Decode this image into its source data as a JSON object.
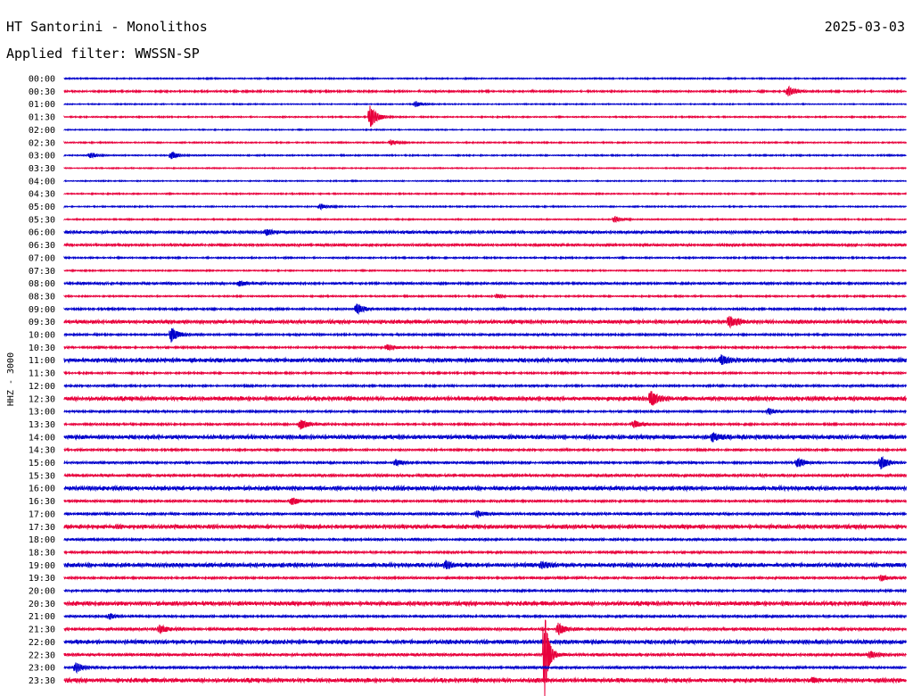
{
  "header": {
    "title": "HT Santorini - Monolithos",
    "date": "2025-03-03",
    "filter": "Applied filter: WWSSN-SP"
  },
  "colors": {
    "blue_trace": "#0000cc",
    "red_trace": "#e8003c"
  },
  "chart_data": {
    "type": "line",
    "title": "HT Santorini - Monolithos",
    "ylabel": "HHZ - 3000",
    "row_labels": [
      "00:00",
      "00:30",
      "01:00",
      "01:30",
      "02:00",
      "02:30",
      "03:00",
      "03:30",
      "04:00",
      "04:30",
      "05:00",
      "05:30",
      "06:00",
      "06:30",
      "07:00",
      "07:30",
      "08:00",
      "08:30",
      "09:00",
      "09:30",
      "10:00",
      "10:30",
      "11:00",
      "11:30",
      "12:00",
      "12:30",
      "13:00",
      "13:30",
      "14:00",
      "14:30",
      "15:00",
      "15:30",
      "16:00",
      "16:30",
      "17:00",
      "17:30",
      "18:00",
      "18:30",
      "19:00",
      "19:30",
      "20:00",
      "20:30",
      "21:00",
      "21:30",
      "22:00",
      "22:30",
      "23:00",
      "23:30"
    ],
    "row_colors": [
      "blue",
      "red"
    ],
    "row_duration_min": 30,
    "noise_level": [
      0.6,
      0.8,
      0.5,
      0.6,
      0.5,
      0.6,
      0.6,
      0.5,
      0.5,
      0.6,
      0.6,
      0.6,
      1.2,
      1.1,
      0.7,
      0.6,
      1.0,
      0.7,
      0.9,
      1.6,
      0.9,
      0.9,
      1.8,
      0.8,
      0.9,
      1.8,
      0.9,
      0.9,
      1.8,
      0.9,
      1.0,
      1.2,
      1.8,
      1.0,
      1.1,
      1.8,
      1.0,
      1.0,
      1.8,
      1.0,
      1.0,
      1.8,
      1.0,
      1.2,
      1.8,
      1.2,
      1.1,
      1.8
    ],
    "events": [
      {
        "row": "00:30",
        "min": 25.8,
        "amp": 5
      },
      {
        "row": "01:00",
        "min": 12.5,
        "amp": 3
      },
      {
        "row": "01:30",
        "min": 10.9,
        "amp": 12
      },
      {
        "row": "02:30",
        "min": 11.6,
        "amp": 3
      },
      {
        "row": "03:00",
        "min": 0.9,
        "amp": 3
      },
      {
        "row": "03:00",
        "min": 3.8,
        "amp": 4
      },
      {
        "row": "05:00",
        "min": 9.1,
        "amp": 3
      },
      {
        "row": "05:30",
        "min": 19.6,
        "amp": 3
      },
      {
        "row": "06:00",
        "min": 7.2,
        "amp": 3
      },
      {
        "row": "08:00",
        "min": 6.2,
        "amp": 3
      },
      {
        "row": "08:30",
        "min": 15.4,
        "amp": 2
      },
      {
        "row": "09:00",
        "min": 10.4,
        "amp": 6
      },
      {
        "row": "09:30",
        "min": 23.7,
        "amp": 6
      },
      {
        "row": "10:00",
        "min": 3.8,
        "amp": 8
      },
      {
        "row": "10:30",
        "min": 11.5,
        "amp": 3
      },
      {
        "row": "11:00",
        "min": 23.4,
        "amp": 5
      },
      {
        "row": "12:30",
        "min": 20.9,
        "amp": 8
      },
      {
        "row": "13:00",
        "min": 25.1,
        "amp": 3
      },
      {
        "row": "13:30",
        "min": 8.4,
        "amp": 6
      },
      {
        "row": "13:30",
        "min": 20.3,
        "amp": 4
      },
      {
        "row": "14:00",
        "min": 23.1,
        "amp": 4
      },
      {
        "row": "15:00",
        "min": 11.8,
        "amp": 3
      },
      {
        "row": "15:00",
        "min": 26.1,
        "amp": 5
      },
      {
        "row": "15:00",
        "min": 29.1,
        "amp": 7
      },
      {
        "row": "16:30",
        "min": 8.1,
        "amp": 4
      },
      {
        "row": "17:00",
        "min": 14.7,
        "amp": 3
      },
      {
        "row": "19:00",
        "min": 13.6,
        "amp": 4
      },
      {
        "row": "19:00",
        "min": 17.0,
        "amp": 3
      },
      {
        "row": "19:30",
        "min": 29.1,
        "amp": 3
      },
      {
        "row": "21:00",
        "min": 1.6,
        "amp": 3
      },
      {
        "row": "21:30",
        "min": 3.4,
        "amp": 4
      },
      {
        "row": "21:30",
        "min": 17.6,
        "amp": 6
      },
      {
        "row": "22:30",
        "min": 17.1,
        "amp": 60
      },
      {
        "row": "22:30",
        "min": 28.7,
        "amp": 4
      },
      {
        "row": "23:00",
        "min": 0.4,
        "amp": 5
      },
      {
        "row": "23:30",
        "min": 26.7,
        "amp": 2
      }
    ]
  }
}
